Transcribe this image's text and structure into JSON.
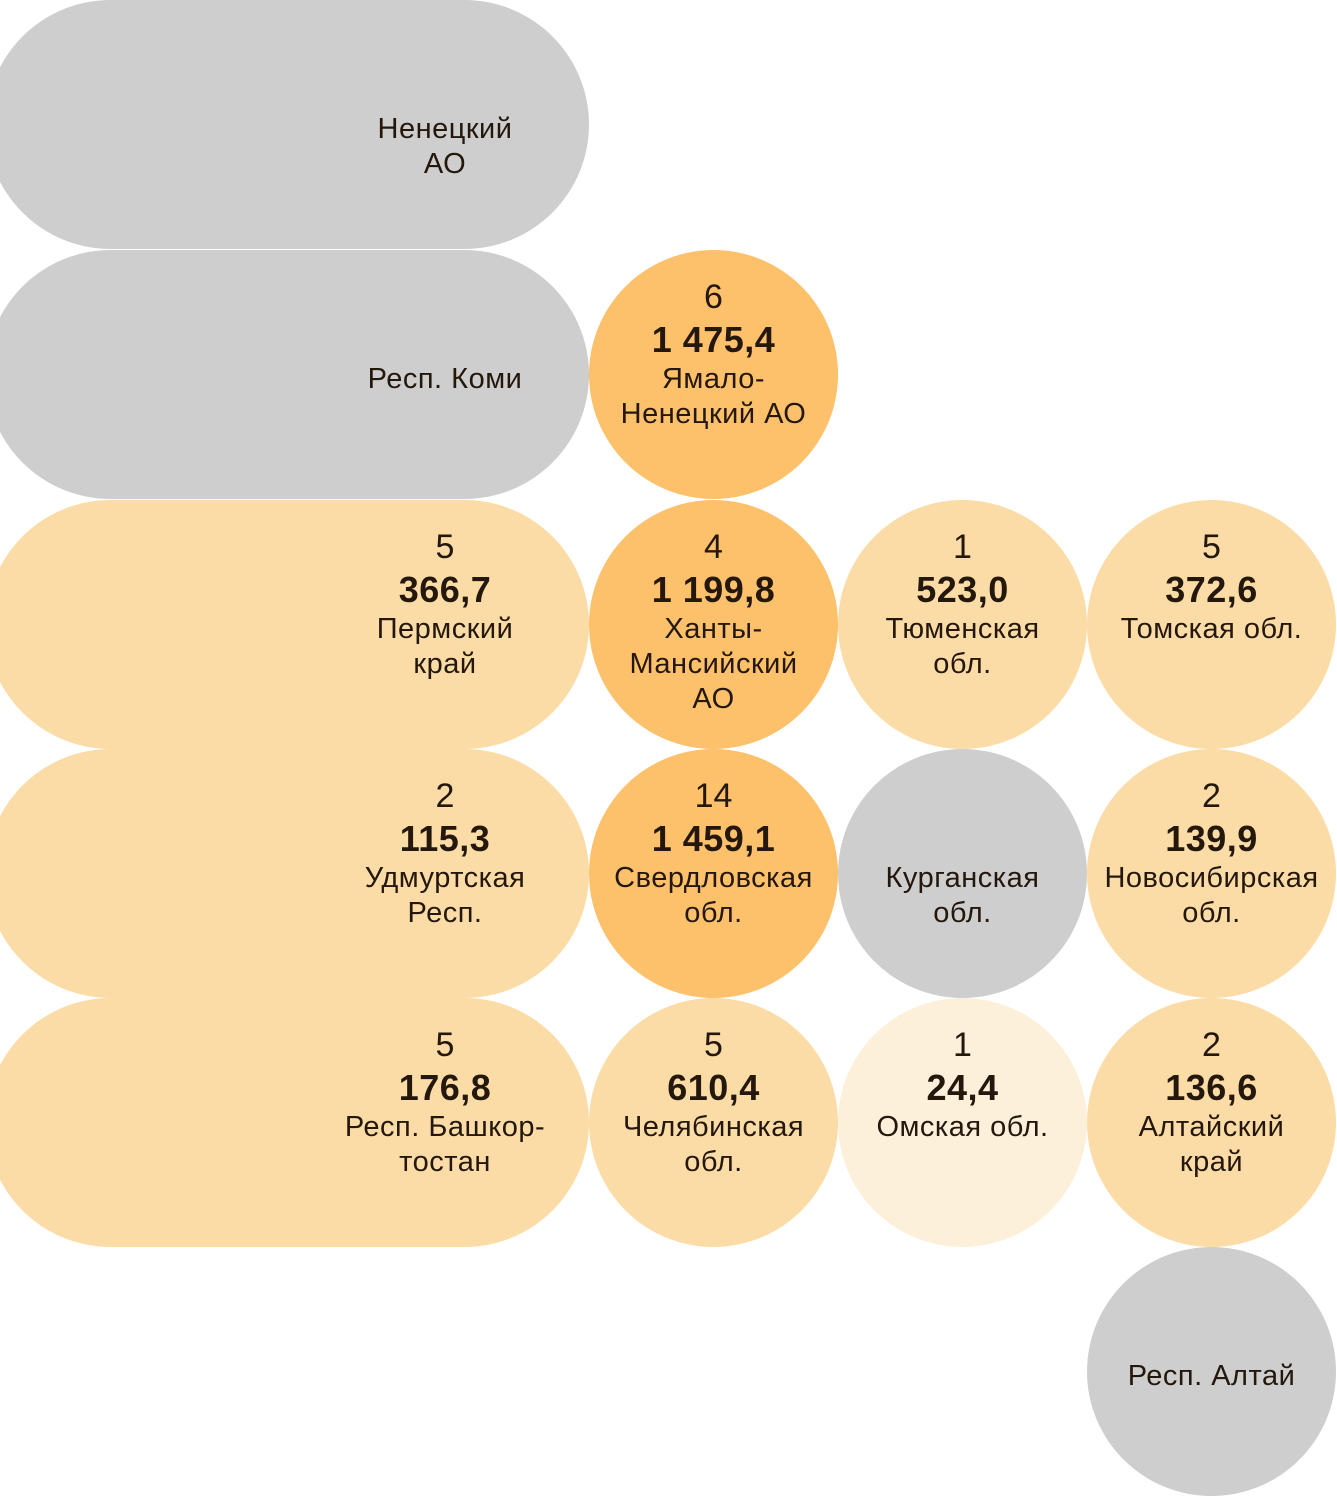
{
  "chart_data": {
    "type": "tile-map",
    "title": "",
    "legend": {
      "grey": "#cecece",
      "light": "#fdf0da",
      "medium": "#fcdca6",
      "strong": "#fdc06b"
    },
    "tiles": [
      {
        "name": "Ненецкий\nАО",
        "count": null,
        "value": null,
        "color": "#cecece"
      },
      {
        "name": "Респ. Коми",
        "count": null,
        "value": null,
        "color": "#cecece"
      },
      {
        "name": "Ямало-\nНенецкий АО",
        "count": "6",
        "value": "1 475,4",
        "color": "#fdc06b"
      },
      {
        "name": "Пермский\nкрай",
        "count": "5",
        "value": "366,7",
        "color": "#fcdca6"
      },
      {
        "name": "Ханты-\nМансийский\nАО",
        "count": "4",
        "value": "1 199,8",
        "color": "#fdc06b"
      },
      {
        "name": "Тюменская\nобл.",
        "count": "1",
        "value": "523,0",
        "color": "#fcdca6"
      },
      {
        "name": "Томская обл.",
        "count": "5",
        "value": "372,6",
        "color": "#fcdca6"
      },
      {
        "name": "Удмуртская\nРесп.",
        "count": "2",
        "value": "115,3",
        "color": "#fcdca6"
      },
      {
        "name": "Свердловская\nобл.",
        "count": "14",
        "value": "1 459,1",
        "color": "#fdc06b"
      },
      {
        "name": "Курганская\nобл.",
        "count": null,
        "value": null,
        "color": "#cecece"
      },
      {
        "name": "Новосибирская\nобл.",
        "count": "2",
        "value": "139,9",
        "color": "#fcdca6"
      },
      {
        "name": "Респ. Башкор-\nтостан",
        "count": "5",
        "value": "176,8",
        "color": "#fcdca6"
      },
      {
        "name": "Челябинская\nобл.",
        "count": "5",
        "value": "610,4",
        "color": "#fcdca6"
      },
      {
        "name": "Омская обл.",
        "count": "1",
        "value": "24,4",
        "color": "#fdf0da"
      },
      {
        "name": "Алтайский\nкрай",
        "count": "2",
        "value": "136,6",
        "color": "#fcdca6"
      },
      {
        "name": "Респ. Алтай",
        "count": null,
        "value": null,
        "color": "#cecece"
      }
    ]
  }
}
